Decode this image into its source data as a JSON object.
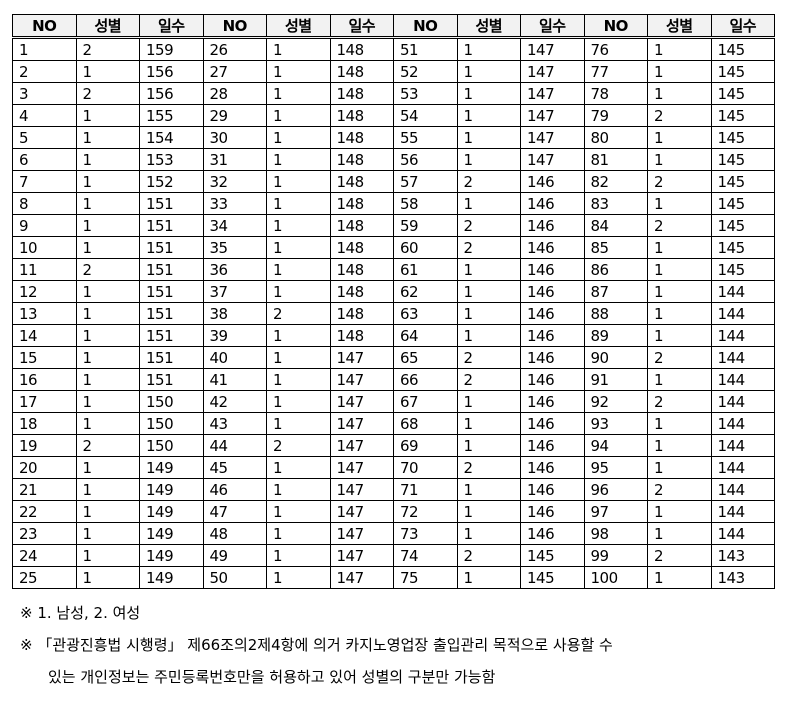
{
  "table": {
    "headers": [
      "NO",
      "성별",
      "일수"
    ],
    "records": [
      [
        1,
        2,
        159
      ],
      [
        2,
        1,
        156
      ],
      [
        3,
        2,
        156
      ],
      [
        4,
        1,
        155
      ],
      [
        5,
        1,
        154
      ],
      [
        6,
        1,
        153
      ],
      [
        7,
        1,
        152
      ],
      [
        8,
        1,
        151
      ],
      [
        9,
        1,
        151
      ],
      [
        10,
        1,
        151
      ],
      [
        11,
        2,
        151
      ],
      [
        12,
        1,
        151
      ],
      [
        13,
        1,
        151
      ],
      [
        14,
        1,
        151
      ],
      [
        15,
        1,
        151
      ],
      [
        16,
        1,
        151
      ],
      [
        17,
        1,
        150
      ],
      [
        18,
        1,
        150
      ],
      [
        19,
        2,
        150
      ],
      [
        20,
        1,
        149
      ],
      [
        21,
        1,
        149
      ],
      [
        22,
        1,
        149
      ],
      [
        23,
        1,
        149
      ],
      [
        24,
        1,
        149
      ],
      [
        25,
        1,
        149
      ],
      [
        26,
        1,
        148
      ],
      [
        27,
        1,
        148
      ],
      [
        28,
        1,
        148
      ],
      [
        29,
        1,
        148
      ],
      [
        30,
        1,
        148
      ],
      [
        31,
        1,
        148
      ],
      [
        32,
        1,
        148
      ],
      [
        33,
        1,
        148
      ],
      [
        34,
        1,
        148
      ],
      [
        35,
        1,
        148
      ],
      [
        36,
        1,
        148
      ],
      [
        37,
        1,
        148
      ],
      [
        38,
        2,
        148
      ],
      [
        39,
        1,
        148
      ],
      [
        40,
        1,
        147
      ],
      [
        41,
        1,
        147
      ],
      [
        42,
        1,
        147
      ],
      [
        43,
        1,
        147
      ],
      [
        44,
        2,
        147
      ],
      [
        45,
        1,
        147
      ],
      [
        46,
        1,
        147
      ],
      [
        47,
        1,
        147
      ],
      [
        48,
        1,
        147
      ],
      [
        49,
        1,
        147
      ],
      [
        50,
        1,
        147
      ],
      [
        51,
        1,
        147
      ],
      [
        52,
        1,
        147
      ],
      [
        53,
        1,
        147
      ],
      [
        54,
        1,
        147
      ],
      [
        55,
        1,
        147
      ],
      [
        56,
        1,
        147
      ],
      [
        57,
        2,
        146
      ],
      [
        58,
        1,
        146
      ],
      [
        59,
        2,
        146
      ],
      [
        60,
        2,
        146
      ],
      [
        61,
        1,
        146
      ],
      [
        62,
        1,
        146
      ],
      [
        63,
        1,
        146
      ],
      [
        64,
        1,
        146
      ],
      [
        65,
        2,
        146
      ],
      [
        66,
        2,
        146
      ],
      [
        67,
        1,
        146
      ],
      [
        68,
        1,
        146
      ],
      [
        69,
        1,
        146
      ],
      [
        70,
        2,
        146
      ],
      [
        71,
        1,
        146
      ],
      [
        72,
        1,
        146
      ],
      [
        73,
        1,
        146
      ],
      [
        74,
        2,
        145
      ],
      [
        75,
        1,
        145
      ],
      [
        76,
        1,
        145
      ],
      [
        77,
        1,
        145
      ],
      [
        78,
        1,
        145
      ],
      [
        79,
        2,
        145
      ],
      [
        80,
        1,
        145
      ],
      [
        81,
        1,
        145
      ],
      [
        82,
        2,
        145
      ],
      [
        83,
        1,
        145
      ],
      [
        84,
        2,
        145
      ],
      [
        85,
        1,
        145
      ],
      [
        86,
        1,
        145
      ],
      [
        87,
        1,
        144
      ],
      [
        88,
        1,
        144
      ],
      [
        89,
        1,
        144
      ],
      [
        90,
        2,
        144
      ],
      [
        91,
        1,
        144
      ],
      [
        92,
        2,
        144
      ],
      [
        93,
        1,
        144
      ],
      [
        94,
        1,
        144
      ],
      [
        95,
        1,
        144
      ],
      [
        96,
        2,
        144
      ],
      [
        97,
        1,
        144
      ],
      [
        98,
        1,
        144
      ],
      [
        99,
        2,
        143
      ],
      [
        100,
        1,
        143
      ]
    ]
  },
  "notes": {
    "legend": "※ 1. 남성,  2. 여성",
    "line1": "※  「관광진흥법 시행령」 제66조의2제4항에 의거 카지노영업장 출입관리 목적으로 사용할 수",
    "line2": "있는 개인정보는 주민등록번호만을 허용하고 있어 성별의 구분만 가능함"
  }
}
